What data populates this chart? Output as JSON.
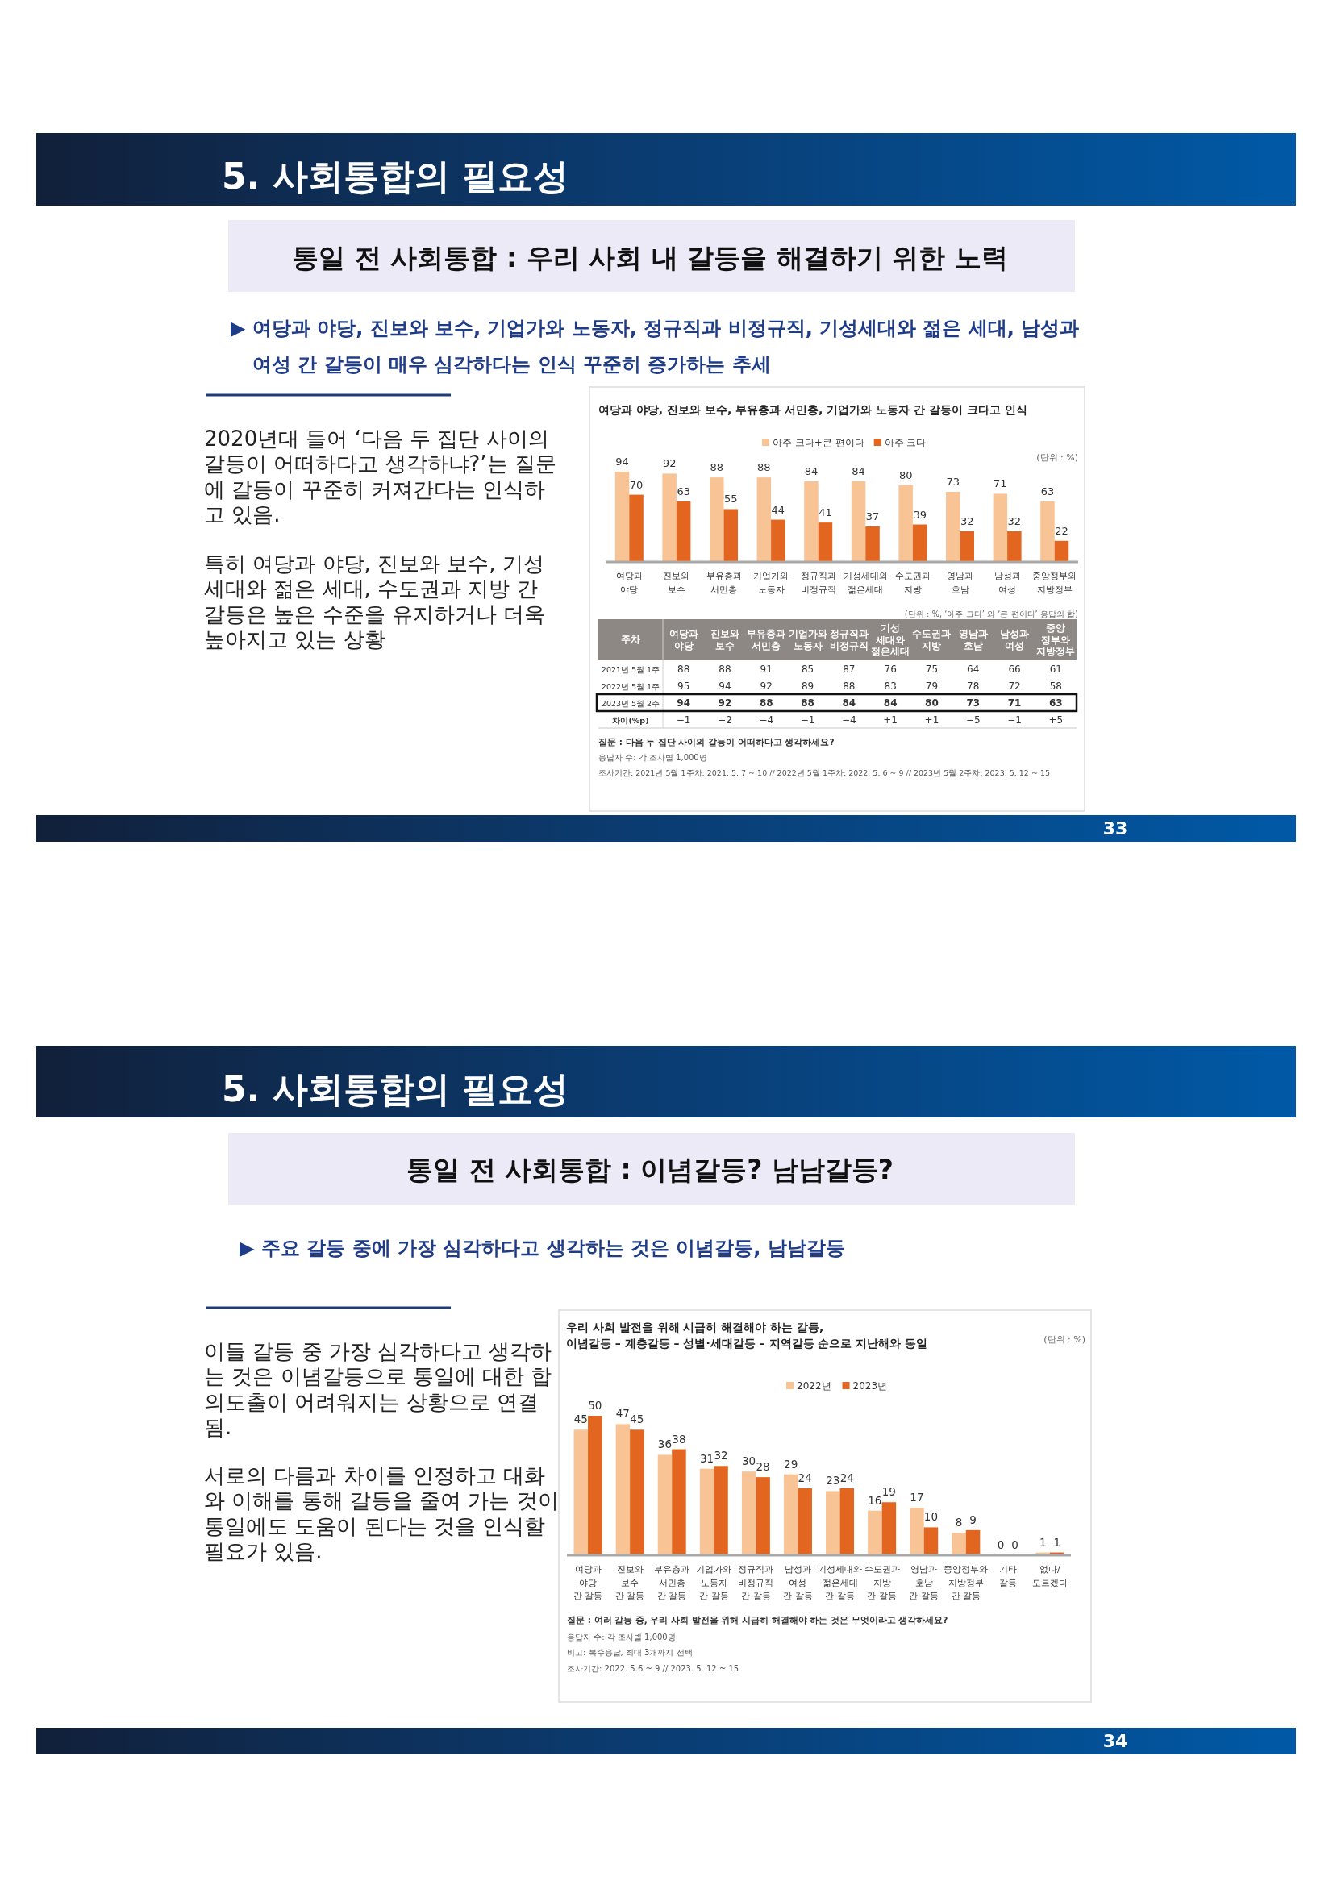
{
  "chart_data": [
    {
      "type": "bar",
      "title": "여당과 야당, 진보와 보수, 부유층과 서민층, 기업가와 노동자 간 갈등이 크다고 인식",
      "categories": [
        "여당과 야당",
        "진보와 보수",
        "부유층과 서민층",
        "기업가와 노동자",
        "정규직과 비정규직",
        "기성세대와 젊은세대",
        "수도권과 지방",
        "영남과 호남",
        "남성과 여성",
        "중앙정부와 지방정부"
      ],
      "series": [
        {
          "name": "아주 크다+큰 편이다",
          "color": "#f8c496",
          "values": [
            94,
            92,
            88,
            88,
            84,
            84,
            80,
            73,
            71,
            63
          ]
        },
        {
          "name": "아주 크다",
          "color": "#e2661f",
          "values": [
            70,
            63,
            55,
            44,
            41,
            37,
            39,
            32,
            32,
            22
          ]
        }
      ],
      "data_labels": true,
      "legend": "top",
      "annotations": [
        "5. 사회통합의 필요성",
        "통일 전 사회통합 : 우리 사회 내 갈등을 해결하기 위한 노력",
        "▶ 여당과 야당, 진보와 보수, 기업가와 노동자, 정규직과 비정규직, 기성세대와 젊은 세대, 남성과 여성 간 갈등이 매우 심각하다는 인식 꾸준히 증가하는 추세",
        "2020년대 들어 ‘다음 두 집단 사이의 갈등이 어떠하다고 생각하냐?’는 질문에 갈등이 꾸준히 커져간다는 인식하고 있음.",
        "특히 여당과 야당, 진보와 보수, 기성세대와 젊은 세대, 수도권과 지방 간 갈등은 높은 수준을 유지하거나 더욱 높아지고 있는 상황",
        "(단위 : %)",
        "(단위 : %, ‘아주 크다’ 와 ‘큰 편이다’ 응답의 합)",
        "33"
      ]
    },
    {
      "type": "other",
      "ylabel": "주차",
      "categories": [
        "여당과 야당",
        "진보와 보수",
        "부유층과 서민층",
        "기업가와 노동자",
        "정규직과 비정규직",
        "기성 세대와 젊은세대",
        "수도권과 지방",
        "영남과 호남",
        "남성과 여성",
        "중앙 정부와 지방정부"
      ],
      "series": [
        {
          "name": "2021년 5월 1주",
          "values": [
            88,
            88,
            91,
            85,
            87,
            76,
            75,
            64,
            66,
            61
          ]
        },
        {
          "name": "2022년 5월 1주",
          "values": [
            95,
            94,
            92,
            89,
            88,
            83,
            79,
            78,
            72,
            58
          ]
        },
        {
          "name": "2023년 5월 2주",
          "values": [
            94,
            92,
            88,
            88,
            84,
            84,
            80,
            73,
            71,
            63
          ]
        },
        {
          "name": "차이(%p)",
          "values": [
            -1,
            -2,
            -4,
            -1,
            -4,
            1,
            1,
            -5,
            -1,
            5
          ],
          "value_labels": [
            "−1",
            "−2",
            "−4",
            "−1",
            "−4",
            "+1",
            "+1",
            "−5",
            "−1",
            "+5"
          ]
        }
      ],
      "data_labels": true,
      "annotations": [
        "질문 : 다음 두 집단 사이의 갈등이 어떠하다고 생각하세요?",
        "응답자 수: 각 조사별 1,000명",
        "조사기간: 2021년 5월 1주차: 2021. 5. 7 ~ 10 // 2022년 5월 1주차: 2022. 5. 6 ~ 9 // 2023년 5월 2주차: 2023. 5. 12 ~ 15"
      ]
    },
    {
      "type": "bar",
      "title": "우리 사회 발전을 위해 시급히 해결해야 하는 갈등,",
      "subtitle": "이념갈등 – 계층갈등 – 성별·세대갈등 – 지역갈등 순으로 지난해와 동일",
      "categories": [
        "여당과 야당 간 갈등",
        "진보와 보수 간 갈등",
        "부유층과 서민층 간 갈등",
        "기업가와 노동자 간 갈등",
        "정규직과 비정규직 간 갈등",
        "남성과 여성 간 갈등",
        "기성세대와 젊은세대 간 갈등",
        "수도권과 지방 간 갈등",
        "영남과 호남 간 갈등",
        "중앙정부와 지방정부 간 갈등",
        "기타 갈등",
        "없다/모르겠다"
      ],
      "series": [
        {
          "name": "2022년",
          "color": "#f8c496",
          "values": [
            45,
            47,
            36,
            31,
            30,
            29,
            23,
            16,
            17,
            8,
            0,
            1
          ]
        },
        {
          "name": "2023년",
          "color": "#e2661f",
          "values": [
            50,
            45,
            38,
            32,
            28,
            24,
            24,
            19,
            10,
            9,
            0,
            1
          ]
        }
      ],
      "data_labels": true,
      "legend": "top",
      "annotations": [
        "5. 사회통합의 필요성",
        "통일 전 사회통합 : 이념갈등? 남남갈등?",
        "▶ 주요 갈등 중에 가장 심각하다고 생각하는 것은 이념갈등, 남남갈등",
        "이들 갈등 중 가장 심각하다고 생각하는 것은 이념갈등으로 통일에 대한 합의도출이 어려워지는 상황으로 연결됨.",
        "서로의 다름과 차이를 인정하고 대화와 이해를 통해 갈등을 줄여 가는 것이 통일에도 도움이 된다는 것을 인식할 필요가 있음.",
        "(단위 : %)",
        "질문 : 여러 갈등 중, 우리 사회 발전을 위해 시급히 해결해야 하는 것은 무엇이라고 생각하세요?",
        "응답자 수: 각 조사별 1,000명",
        "비고: 복수응답, 최대 3개까지 선택",
        "조사기간: 2022. 5.6 ~ 9 // 2023. 5. 12 ~ 15",
        "34"
      ]
    }
  ]
}
